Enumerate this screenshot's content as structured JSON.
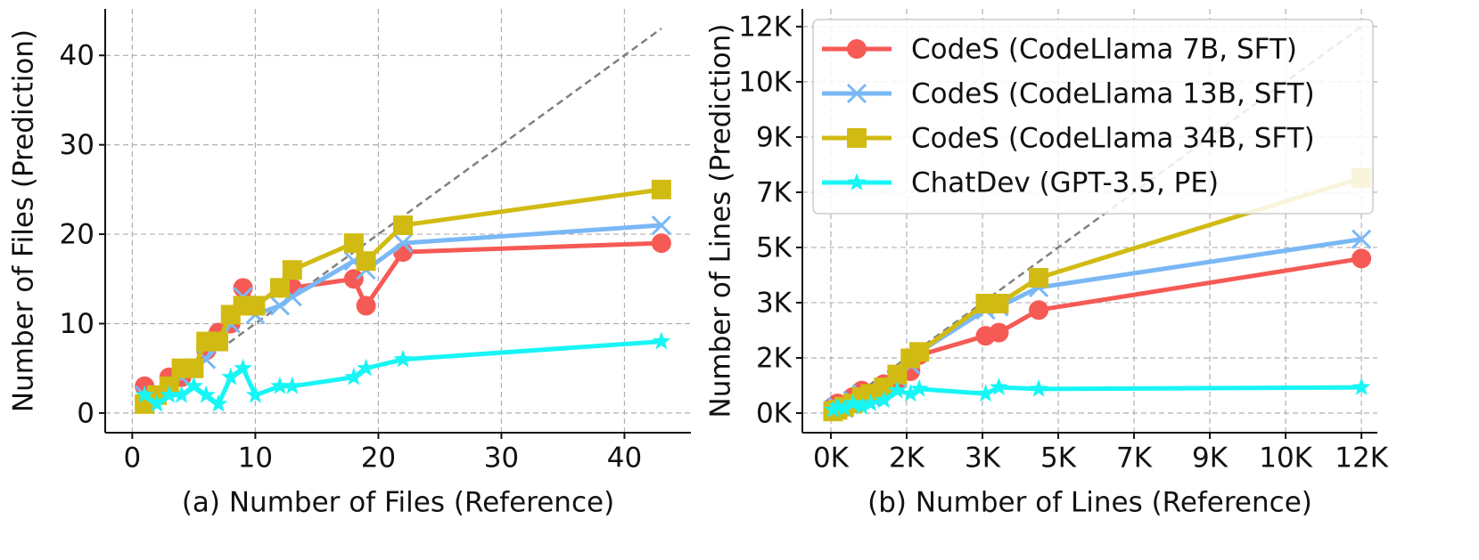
{
  "chart_data": [
    {
      "type": "line",
      "x_label": "(a) Number of Files (Reference)",
      "y_label": "Number of Files (Prediction)",
      "xlim": [
        -2.2,
        45.4
      ],
      "ylim": [
        -2.2,
        45.2
      ],
      "xticks": [
        0,
        10,
        20,
        30,
        40
      ],
      "yticks": [
        0,
        10,
        20,
        30,
        40
      ],
      "grid": true,
      "reference_line": {
        "color": "#808080",
        "x": [
          1,
          43
        ],
        "y": [
          1,
          43
        ]
      },
      "x": [
        1,
        2,
        3,
        4,
        5,
        6,
        7,
        8,
        9,
        10,
        12,
        13,
        18,
        19,
        22,
        43
      ],
      "series": [
        {
          "color": "#f65a55",
          "marker": "circle",
          "values": [
            3,
            2,
            4,
            4,
            5,
            7,
            9,
            10,
            14,
            12,
            14,
            14,
            15,
            12,
            18,
            19
          ]
        },
        {
          "color": "#7ab8f5",
          "marker": "x",
          "values": [
            2,
            2,
            3,
            4,
            5,
            6,
            8,
            10,
            13,
            11,
            12,
            13,
            17,
            16,
            19,
            21
          ]
        },
        {
          "color": "#d1bb12",
          "marker": "square",
          "values": [
            1,
            2,
            3,
            5,
            5,
            8,
            8,
            11,
            12,
            12,
            14,
            16,
            19,
            17,
            21,
            25
          ]
        },
        {
          "color": "#17f5f5",
          "marker": "star",
          "values": [
            2,
            1,
            2,
            2,
            3,
            2,
            1,
            4,
            5,
            2,
            3,
            3,
            4,
            5,
            6,
            8
          ]
        }
      ]
    },
    {
      "type": "line",
      "x_label": "(b) Number of Lines (Reference)",
      "y_label": "Number of Lines (Prediction)",
      "xlim": [
        -645,
        12360
      ],
      "ylim": [
        -608,
        12550
      ],
      "xticks": [
        {
          "value": 0,
          "label": "0K"
        },
        {
          "value": 1714,
          "label": "2K"
        },
        {
          "value": 3429,
          "label": "3K"
        },
        {
          "value": 5143,
          "label": "5K"
        },
        {
          "value": 6857,
          "label": "7K"
        },
        {
          "value": 8571,
          "label": "9K"
        },
        {
          "value": 10286,
          "label": "10K"
        },
        {
          "value": 12000,
          "label": "12K"
        }
      ],
      "yticks": [
        {
          "value": 0,
          "label": "0K"
        },
        {
          "value": 1714,
          "label": "2K"
        },
        {
          "value": 3429,
          "label": "3K"
        },
        {
          "value": 5143,
          "label": "5K"
        },
        {
          "value": 6857,
          "label": "7K"
        },
        {
          "value": 8571,
          "label": "9K"
        },
        {
          "value": 10286,
          "label": "10K"
        },
        {
          "value": 12000,
          "label": "12K"
        }
      ],
      "grid": true,
      "legend": "upper left",
      "reference_line": {
        "color": "#808080",
        "x": [
          0,
          12000
        ],
        "y": [
          0,
          12000
        ]
      },
      "x": [
        50,
        150,
        300,
        500,
        700,
        900,
        1200,
        1500,
        1800,
        2000,
        3500,
        3800,
        4700,
        12000
      ],
      "series": [
        {
          "name": "CodeS (CodeLlama 7B, SFT)",
          "color": "#f65a55",
          "marker": "circle",
          "values": [
            200,
            300,
            250,
            500,
            700,
            600,
            900,
            1000,
            1300,
            1800,
            2400,
            2500,
            3200,
            4800
          ]
        },
        {
          "name": "CodeS (CodeLlama 13B, SFT)",
          "color": "#7ab8f5",
          "marker": "x",
          "values": [
            100,
            200,
            150,
            400,
            600,
            500,
            800,
            1100,
            1500,
            1900,
            3200,
            3300,
            3900,
            5400
          ]
        },
        {
          "name": "CodeS (CodeLlama 34B, SFT)",
          "color": "#d1bb12",
          "marker": "square",
          "values": [
            50,
            100,
            200,
            300,
            500,
            600,
            800,
            1200,
            1700,
            1900,
            3400,
            3400,
            4200,
            7300
          ]
        },
        {
          "name": "ChatDev (GPT-3.5, PE)",
          "color": "#17f5f5",
          "marker": "star",
          "values": [
            100,
            200,
            150,
            300,
            200,
            300,
            400,
            700,
            600,
            750,
            600,
            800,
            750,
            800
          ]
        }
      ]
    }
  ]
}
